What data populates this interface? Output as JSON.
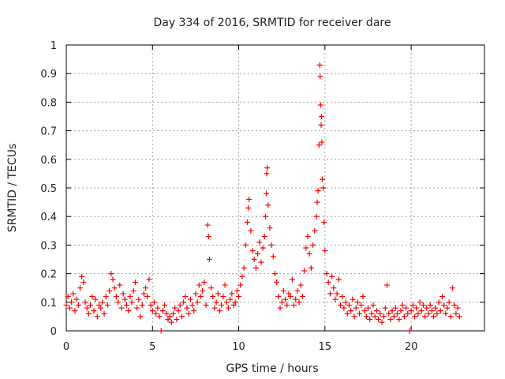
{
  "chart_data": {
    "type": "scatter",
    "title": "Day 334 of 2016, SRMTID for receiver dare",
    "xlabel": "GPS time / hours",
    "ylabel": "SRMTID / TECUs",
    "xlim": [
      0,
      24.25
    ],
    "ylim": [
      0,
      1
    ],
    "x_ticks": [
      0,
      5,
      10,
      15,
      20
    ],
    "y_ticks": [
      0,
      0.1,
      0.2,
      0.3,
      0.4,
      0.5,
      0.6,
      0.7,
      0.8,
      0.9,
      1
    ],
    "x_tick_labels": [
      "0",
      "5",
      "10",
      "15",
      "20"
    ],
    "y_tick_labels": [
      "0",
      "0.1",
      "0.2",
      "0.3",
      "0.4",
      "0.5",
      "0.6",
      "0.7",
      "0.8",
      "0.9",
      "1"
    ],
    "grid": true,
    "marker": "+",
    "color": "#ff0000",
    "series": [
      {
        "name": "SRMTID",
        "points": [
          [
            0.0,
            0.09
          ],
          [
            0.1,
            0.12
          ],
          [
            0.2,
            0.08
          ],
          [
            0.3,
            0.1
          ],
          [
            0.4,
            0.13
          ],
          [
            0.5,
            0.07
          ],
          [
            0.6,
            0.11
          ],
          [
            0.7,
            0.09
          ],
          [
            0.8,
            0.15
          ],
          [
            0.9,
            0.19
          ],
          [
            1.0,
            0.17
          ],
          [
            1.1,
            0.1
          ],
          [
            1.2,
            0.08
          ],
          [
            1.3,
            0.06
          ],
          [
            1.4,
            0.09
          ],
          [
            1.5,
            0.12
          ],
          [
            1.6,
            0.07
          ],
          [
            1.7,
            0.11
          ],
          [
            1.8,
            0.05
          ],
          [
            1.9,
            0.09
          ],
          [
            2.0,
            0.08
          ],
          [
            2.1,
            0.1
          ],
          [
            2.2,
            0.06
          ],
          [
            2.3,
            0.12
          ],
          [
            2.4,
            0.09
          ],
          [
            2.5,
            0.14
          ],
          [
            2.6,
            0.2
          ],
          [
            2.7,
            0.18
          ],
          [
            2.8,
            0.15
          ],
          [
            2.9,
            0.12
          ],
          [
            3.0,
            0.1
          ],
          [
            3.1,
            0.16
          ],
          [
            3.2,
            0.08
          ],
          [
            3.3,
            0.13
          ],
          [
            3.4,
            0.11
          ],
          [
            3.5,
            0.09
          ],
          [
            3.6,
            0.07
          ],
          [
            3.7,
            0.12
          ],
          [
            3.8,
            0.1
          ],
          [
            3.9,
            0.14
          ],
          [
            4.0,
            0.17
          ],
          [
            4.1,
            0.08
          ],
          [
            4.2,
            0.11
          ],
          [
            4.3,
            0.05
          ],
          [
            4.4,
            0.09
          ],
          [
            4.5,
            0.13
          ],
          [
            4.6,
            0.15
          ],
          [
            4.7,
            0.12
          ],
          [
            4.8,
            0.18
          ],
          [
            4.9,
            0.09
          ],
          [
            5.0,
            0.07
          ],
          [
            5.1,
            0.1
          ],
          [
            5.2,
            0.06
          ],
          [
            5.3,
            0.08
          ],
          [
            5.4,
            0.05
          ],
          [
            5.5,
            0.0
          ],
          [
            5.6,
            0.07
          ],
          [
            5.7,
            0.09
          ],
          [
            5.8,
            0.06
          ],
          [
            5.9,
            0.04
          ],
          [
            6.0,
            0.05
          ],
          [
            6.1,
            0.03
          ],
          [
            6.2,
            0.06
          ],
          [
            6.3,
            0.08
          ],
          [
            6.4,
            0.04
          ],
          [
            6.5,
            0.07
          ],
          [
            6.6,
            0.09
          ],
          [
            6.7,
            0.05
          ],
          [
            6.8,
            0.1
          ],
          [
            6.9,
            0.12
          ],
          [
            7.0,
            0.08
          ],
          [
            7.1,
            0.06
          ],
          [
            7.2,
            0.11
          ],
          [
            7.3,
            0.09
          ],
          [
            7.4,
            0.07
          ],
          [
            7.5,
            0.13
          ],
          [
            7.6,
            0.1
          ],
          [
            7.7,
            0.16
          ],
          [
            7.8,
            0.12
          ],
          [
            7.9,
            0.14
          ],
          [
            8.0,
            0.17
          ],
          [
            8.1,
            0.09
          ],
          [
            8.2,
            0.37
          ],
          [
            8.25,
            0.33
          ],
          [
            8.3,
            0.25
          ],
          [
            8.4,
            0.15
          ],
          [
            8.5,
            0.12
          ],
          [
            8.6,
            0.08
          ],
          [
            8.7,
            0.1
          ],
          [
            8.8,
            0.13
          ],
          [
            8.9,
            0.07
          ],
          [
            9.0,
            0.09
          ],
          [
            9.1,
            0.12
          ],
          [
            9.2,
            0.16
          ],
          [
            9.3,
            0.1
          ],
          [
            9.4,
            0.08
          ],
          [
            9.5,
            0.11
          ],
          [
            9.6,
            0.13
          ],
          [
            9.7,
            0.09
          ],
          [
            9.8,
            0.1
          ],
          [
            9.9,
            0.14
          ],
          [
            10.0,
            0.12
          ],
          [
            10.1,
            0.16
          ],
          [
            10.2,
            0.19
          ],
          [
            10.3,
            0.22
          ],
          [
            10.4,
            0.3
          ],
          [
            10.5,
            0.38
          ],
          [
            10.55,
            0.43
          ],
          [
            10.6,
            0.46
          ],
          [
            10.7,
            0.35
          ],
          [
            10.8,
            0.28
          ],
          [
            10.9,
            0.25
          ],
          [
            11.0,
            0.22
          ],
          [
            11.1,
            0.27
          ],
          [
            11.2,
            0.31
          ],
          [
            11.3,
            0.24
          ],
          [
            11.4,
            0.29
          ],
          [
            11.5,
            0.33
          ],
          [
            11.55,
            0.4
          ],
          [
            11.6,
            0.48
          ],
          [
            11.62,
            0.55
          ],
          [
            11.65,
            0.57
          ],
          [
            11.7,
            0.44
          ],
          [
            11.8,
            0.36
          ],
          [
            11.9,
            0.3
          ],
          [
            12.0,
            0.26
          ],
          [
            12.1,
            0.2
          ],
          [
            12.2,
            0.17
          ],
          [
            12.3,
            0.12
          ],
          [
            12.4,
            0.08
          ],
          [
            12.5,
            0.1
          ],
          [
            12.6,
            0.14
          ],
          [
            12.7,
            0.11
          ],
          [
            12.8,
            0.09
          ],
          [
            12.9,
            0.13
          ],
          [
            13.0,
            0.12
          ],
          [
            13.1,
            0.18
          ],
          [
            13.2,
            0.09
          ],
          [
            13.3,
            0.11
          ],
          [
            13.4,
            0.14
          ],
          [
            13.5,
            0.1
          ],
          [
            13.6,
            0.16
          ],
          [
            13.7,
            0.12
          ],
          [
            13.8,
            0.21
          ],
          [
            13.9,
            0.29
          ],
          [
            14.0,
            0.33
          ],
          [
            14.1,
            0.27
          ],
          [
            14.2,
            0.22
          ],
          [
            14.3,
            0.3
          ],
          [
            14.4,
            0.35
          ],
          [
            14.5,
            0.4
          ],
          [
            14.55,
            0.45
          ],
          [
            14.6,
            0.49
          ],
          [
            14.65,
            0.65
          ],
          [
            14.7,
            0.93
          ],
          [
            14.72,
            0.89
          ],
          [
            14.75,
            0.79
          ],
          [
            14.78,
            0.72
          ],
          [
            14.8,
            0.75
          ],
          [
            14.82,
            0.66
          ],
          [
            14.85,
            0.53
          ],
          [
            14.9,
            0.5
          ],
          [
            14.95,
            0.38
          ],
          [
            15.0,
            0.28
          ],
          [
            15.1,
            0.2
          ],
          [
            15.2,
            0.17
          ],
          [
            15.3,
            0.13
          ],
          [
            15.4,
            0.19
          ],
          [
            15.5,
            0.15
          ],
          [
            15.6,
            0.11
          ],
          [
            15.7,
            0.13
          ],
          [
            15.8,
            0.18
          ],
          [
            15.9,
            0.09
          ],
          [
            16.0,
            0.12
          ],
          [
            16.1,
            0.08
          ],
          [
            16.2,
            0.1
          ],
          [
            16.3,
            0.06
          ],
          [
            16.4,
            0.09
          ],
          [
            16.5,
            0.07
          ],
          [
            16.6,
            0.11
          ],
          [
            16.7,
            0.05
          ],
          [
            16.8,
            0.08
          ],
          [
            16.9,
            0.1
          ],
          [
            17.0,
            0.06
          ],
          [
            17.1,
            0.09
          ],
          [
            17.2,
            0.12
          ],
          [
            17.3,
            0.07
          ],
          [
            17.4,
            0.05
          ],
          [
            17.5,
            0.08
          ],
          [
            17.6,
            0.04
          ],
          [
            17.7,
            0.06
          ],
          [
            17.8,
            0.09
          ],
          [
            17.9,
            0.05
          ],
          [
            18.0,
            0.07
          ],
          [
            18.1,
            0.04
          ],
          [
            18.2,
            0.06
          ],
          [
            18.3,
            0.03
          ],
          [
            18.4,
            0.05
          ],
          [
            18.5,
            0.08
          ],
          [
            18.6,
            0.16
          ],
          [
            18.7,
            0.06
          ],
          [
            18.8,
            0.04
          ],
          [
            18.9,
            0.07
          ],
          [
            19.0,
            0.05
          ],
          [
            19.1,
            0.08
          ],
          [
            19.2,
            0.06
          ],
          [
            19.3,
            0.04
          ],
          [
            19.4,
            0.07
          ],
          [
            19.5,
            0.09
          ],
          [
            19.6,
            0.05
          ],
          [
            19.7,
            0.08
          ],
          [
            19.8,
            0.06
          ],
          [
            19.9,
            0.0
          ],
          [
            20.0,
            0.07
          ],
          [
            20.1,
            0.09
          ],
          [
            20.2,
            0.05
          ],
          [
            20.3,
            0.08
          ],
          [
            20.4,
            0.06
          ],
          [
            20.5,
            0.1
          ],
          [
            20.6,
            0.07
          ],
          [
            20.7,
            0.09
          ],
          [
            20.8,
            0.05
          ],
          [
            20.9,
            0.08
          ],
          [
            21.0,
            0.06
          ],
          [
            21.1,
            0.09
          ],
          [
            21.2,
            0.07
          ],
          [
            21.3,
            0.05
          ],
          [
            21.4,
            0.08
          ],
          [
            21.5,
            0.06
          ],
          [
            21.6,
            0.1
          ],
          [
            21.7,
            0.07
          ],
          [
            21.8,
            0.12
          ],
          [
            21.9,
            0.09
          ],
          [
            22.0,
            0.06
          ],
          [
            22.1,
            0.08
          ],
          [
            22.2,
            0.1
          ],
          [
            22.3,
            0.05
          ],
          [
            22.4,
            0.15
          ],
          [
            22.5,
            0.09
          ],
          [
            22.6,
            0.06
          ],
          [
            22.7,
            0.08
          ],
          [
            22.8,
            0.05
          ]
        ]
      }
    ]
  }
}
